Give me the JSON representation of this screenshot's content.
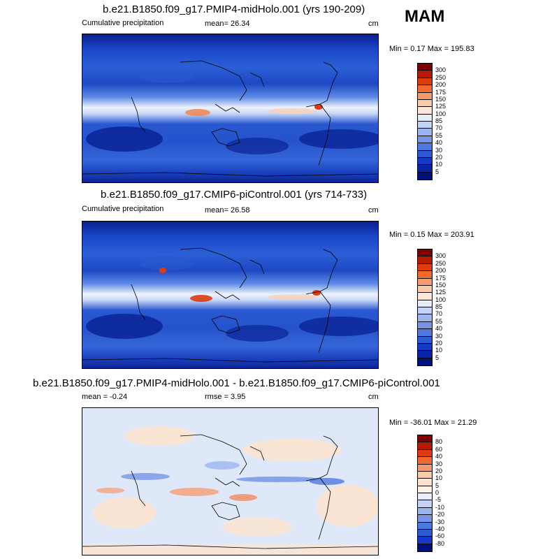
{
  "season": "MAM",
  "panels": [
    {
      "title": "b.e21.B1850.f09_g17.PMIP4-midHolo.001 (yrs 190-209)",
      "left": "Cumulative precipitation",
      "stat": "mean=  26.34",
      "unit": "cm",
      "minmax": "Min =   0.17 Max = 195.83",
      "colorbar": {
        "labels": [
          "300",
          "250",
          "200",
          "175",
          "150",
          "125",
          "100",
          "85",
          "70",
          "55",
          "40",
          "30",
          "20",
          "10",
          "5"
        ],
        "colors": [
          "#7f0000",
          "#b51b00",
          "#dc3c0f",
          "#ee6a2d",
          "#f59a6c",
          "#fbc9a4",
          "#fbe6d8",
          "#e8eef8",
          "#c3d3f5",
          "#9bb5ef",
          "#7596e6",
          "#4f78de",
          "#2c59d4",
          "#1439c4",
          "#0a22a6",
          "#02107e"
        ]
      }
    },
    {
      "title": "b.e21.B1850.f09_g17.CMIP6-piControl.001 (yrs 714-733)",
      "left": "Cumulative precipitation",
      "stat": "mean=  26.58",
      "unit": "cm",
      "minmax": "Min =   0.15 Max = 203.91",
      "colorbar": {
        "labels": [
          "300",
          "250",
          "200",
          "175",
          "150",
          "125",
          "100",
          "85",
          "70",
          "55",
          "40",
          "30",
          "20",
          "10",
          "5"
        ],
        "colors": [
          "#7f0000",
          "#b51b00",
          "#dc3c0f",
          "#ee6a2d",
          "#f59a6c",
          "#fbc9a4",
          "#fbe6d8",
          "#e8eef8",
          "#c3d3f5",
          "#9bb5ef",
          "#7596e6",
          "#4f78de",
          "#2c59d4",
          "#1439c4",
          "#0a22a6",
          "#02107e"
        ]
      }
    },
    {
      "title": "b.e21.B1850.f09_g17.PMIP4-midHolo.001 - b.e21.B1850.f09_g17.CMIP6-piControl.001",
      "left": "mean =  -0.24",
      "stat": "rmse =   3.95",
      "unit": "cm",
      "minmax": "Min = -36.01 Max =  21.29",
      "colorbar": {
        "labels": [
          "80",
          "60",
          "40",
          "30",
          "20",
          "10",
          "5",
          "0",
          "-5",
          "-10",
          "-20",
          "-30",
          "-40",
          "-60",
          "-80"
        ],
        "colors": [
          "#7f0000",
          "#b51b00",
          "#dc3c0f",
          "#ee6a2d",
          "#f59a6c",
          "#fbc9a4",
          "#fde3cf",
          "#fdf0e6",
          "#e6eefb",
          "#c3d3f5",
          "#9bb5ef",
          "#7596e6",
          "#4f78de",
          "#2c59d4",
          "#1439c4",
          "#02107e"
        ]
      }
    }
  ]
}
